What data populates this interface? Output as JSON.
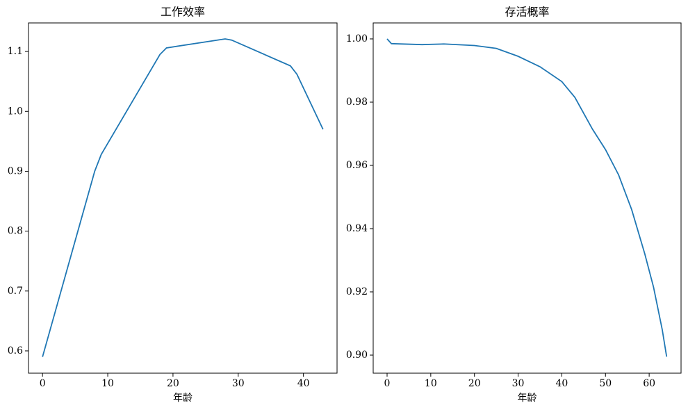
{
  "chart_data": [
    {
      "type": "line",
      "title": "工作效率",
      "xlabel": "年龄",
      "x": [
        0,
        8,
        9,
        18,
        19,
        28,
        29,
        38,
        39,
        43
      ],
      "series": [
        {
          "color": "#1f77b4",
          "values": [
            0.59,
            0.9,
            0.928,
            1.095,
            1.106,
            1.121,
            1.119,
            1.076,
            1.062,
            0.97
          ]
        }
      ],
      "xlim": [
        -2.15,
        45.15
      ],
      "xticks": [
        0,
        10,
        20,
        30,
        40
      ],
      "ylim": [
        0.5628,
        1.1477
      ],
      "yticks": [
        0.6,
        0.7,
        0.8,
        0.9,
        {
          "value": 1,
          "label": "1.0"
        },
        1.1
      ]
    },
    {
      "type": "line",
      "title": "存活概率",
      "xlabel": "年龄",
      "x": [
        0,
        1,
        8,
        13,
        20,
        25,
        30,
        35,
        40,
        43,
        47,
        50,
        53,
        56,
        59,
        61,
        63,
        64
      ],
      "series": [
        {
          "color": "#1f77b4",
          "values": [
            1.0,
            0.9985,
            0.9982,
            0.9984,
            0.9979,
            0.997,
            0.9945,
            0.9912,
            0.9865,
            0.9815,
            0.9715,
            0.965,
            0.957,
            0.946,
            0.932,
            0.9215,
            0.908,
            0.8995
          ]
        }
      ],
      "xlim": [
        -3.18,
        67.3
      ],
      "xticks": [
        0,
        10,
        20,
        30,
        40,
        50,
        60
      ],
      "ylim": [
        0.89429,
        1.00505
      ],
      "yticks": [
        {
          "value": 0.9,
          "label": "0.90"
        },
        {
          "value": 0.92,
          "label": "0.92"
        },
        {
          "value": 0.94,
          "label": "0.94"
        },
        {
          "value": 0.96,
          "label": "0.96"
        },
        {
          "value": 0.98,
          "label": "0.98"
        },
        {
          "value": 1,
          "label": "1.00"
        }
      ]
    }
  ]
}
